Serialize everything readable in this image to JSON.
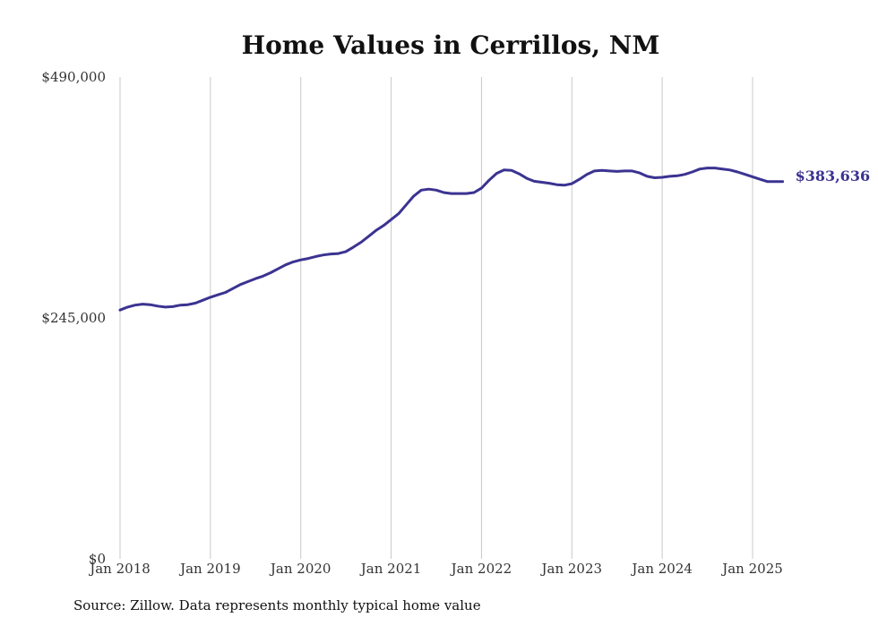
{
  "chart_data": {
    "type": "line",
    "title": "Home Values in Cerrillos, NM",
    "source": "Source: Zillow. Data represents monthly typical home value",
    "line_color": "#3b3391",
    "grid_color": "#c8c8c8",
    "ylim": [
      0,
      490000
    ],
    "yticks": [
      {
        "value": 0,
        "label": "$0"
      },
      {
        "value": 245000,
        "label": "$245,000"
      },
      {
        "value": 490000,
        "label": "$490,000"
      }
    ],
    "xticks": [
      {
        "value": 2018,
        "label": "Jan 2018"
      },
      {
        "value": 2019,
        "label": "Jan 2019"
      },
      {
        "value": 2020,
        "label": "Jan 2020"
      },
      {
        "value": 2021,
        "label": "Jan 2021"
      },
      {
        "value": 2022,
        "label": "Jan 2022"
      },
      {
        "value": 2023,
        "label": "Jan 2023"
      },
      {
        "value": 2024,
        "label": "Jan 2024"
      },
      {
        "value": 2025,
        "label": "Jan 2025"
      }
    ],
    "xlim": [
      2018,
      2025
    ],
    "vertical_grid": true,
    "end_label": "$383,636",
    "series": [
      {
        "x": [
          2018.0,
          2018.083,
          2018.167,
          2018.25,
          2018.333,
          2018.417,
          2018.5,
          2018.583,
          2018.667,
          2018.75,
          2018.833,
          2018.917,
          2019.0,
          2019.083,
          2019.167,
          2019.25,
          2019.333,
          2019.417,
          2019.5,
          2019.583,
          2019.667,
          2019.75,
          2019.833,
          2019.917,
          2020.0,
          2020.083,
          2020.167,
          2020.25,
          2020.333,
          2020.417,
          2020.5,
          2020.583,
          2020.667,
          2020.75,
          2020.833,
          2020.917,
          2021.0,
          2021.083,
          2021.167,
          2021.25,
          2021.333,
          2021.417,
          2021.5,
          2021.583,
          2021.667,
          2021.75,
          2021.833,
          2021.917,
          2022.0,
          2022.083,
          2022.167,
          2022.25,
          2022.333,
          2022.417,
          2022.5,
          2022.583,
          2022.667,
          2022.75,
          2022.833,
          2022.917,
          2023.0,
          2023.083,
          2023.167,
          2023.25,
          2023.333,
          2023.417,
          2023.5,
          2023.583,
          2023.667,
          2023.75,
          2023.833,
          2023.917,
          2024.0,
          2024.083,
          2024.167,
          2024.25,
          2024.333,
          2024.417,
          2024.5,
          2024.583,
          2024.667,
          2024.75,
          2024.833,
          2024.917,
          2025.0,
          2025.083,
          2025.167,
          2025.25,
          2025.333
        ],
        "values": [
          253000,
          256000,
          258000,
          259000,
          258500,
          257000,
          256000,
          256500,
          258000,
          258500,
          260000,
          263000,
          266000,
          268500,
          271000,
          275000,
          279000,
          282000,
          285000,
          287500,
          291000,
          295000,
          299000,
          302000,
          304000,
          305500,
          307500,
          309000,
          310000,
          310500,
          312500,
          317000,
          322000,
          328000,
          334000,
          339000,
          345000,
          351000,
          360000,
          369000,
          375000,
          376000,
          375000,
          372500,
          371500,
          371500,
          371500,
          372500,
          377000,
          385000,
          392000,
          395500,
          395000,
          391500,
          387000,
          384000,
          383000,
          382000,
          380500,
          380000,
          381500,
          386000,
          391000,
          394500,
          395000,
          394500,
          394000,
          394500,
          394500,
          392500,
          389000,
          387500,
          388000,
          389000,
          389500,
          391000,
          393500,
          396500,
          397500,
          397500,
          396500,
          395500,
          393500,
          391000,
          388500,
          386000,
          383636,
          383636,
          383636
        ]
      }
    ]
  }
}
